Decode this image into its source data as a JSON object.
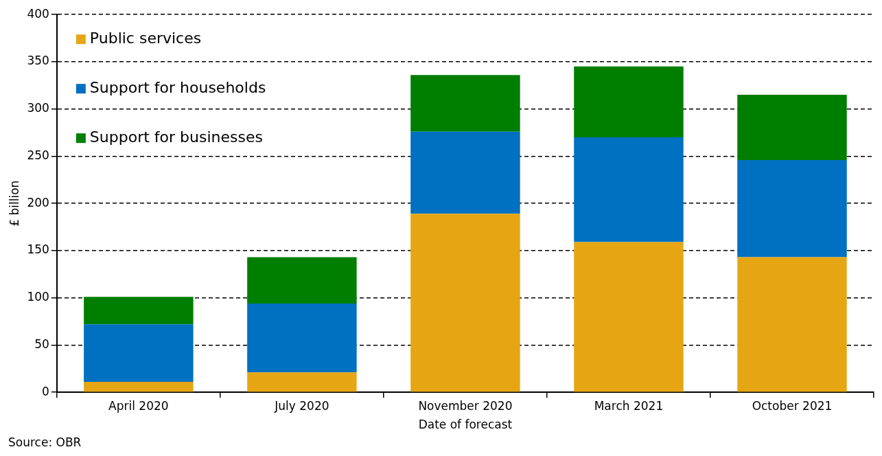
{
  "chart_data": {
    "type": "bar",
    "stacked": true,
    "categories": [
      "April 2020",
      "July 2020",
      "November 2020",
      "March 2021",
      "October 2021"
    ],
    "series": [
      {
        "name": "Public services",
        "color": "#e6a614",
        "values": [
          11,
          21,
          189,
          159,
          143
        ]
      },
      {
        "name": "Support for households",
        "color": "#0070c0",
        "values": [
          61,
          73,
          87,
          111,
          103
        ]
      },
      {
        "name": "Support for businesses",
        "color": "#007e00",
        "values": [
          29,
          49,
          60,
          75,
          69
        ]
      }
    ],
    "xlabel": "Date of forecast",
    "ylabel": "£ billion",
    "ylim": [
      0,
      400
    ],
    "yticks": [
      0,
      50,
      100,
      150,
      200,
      250,
      300,
      350,
      400
    ],
    "grid": "y",
    "legend": "top left",
    "annotations": [
      "Source: OBR"
    ]
  }
}
